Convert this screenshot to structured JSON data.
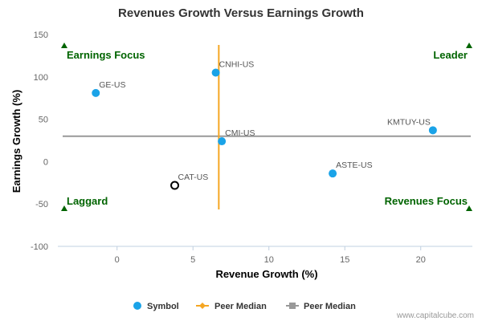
{
  "chart_data": {
    "type": "scatter",
    "title": "Revenues Growth Versus Earnings Growth",
    "xlabel": "Revenue Growth (%)",
    "ylabel": "Earnings Growth (%)",
    "xlim": [
      -3.9,
      23.4
    ],
    "ylim": [
      -100,
      150
    ],
    "xticks": [
      0,
      5,
      10,
      15,
      20
    ],
    "yticks": [
      150,
      100,
      50,
      0,
      -50,
      -100
    ],
    "grid": false,
    "legend_position": "bottom",
    "points": [
      {
        "label": "GE-US",
        "x": -1.4,
        "y": 81,
        "style": "filled"
      },
      {
        "label": "CNHI-US",
        "x": 6.5,
        "y": 105,
        "style": "filled"
      },
      {
        "label": "CMI-US",
        "x": 6.9,
        "y": 24,
        "style": "filled"
      },
      {
        "label": "ASTE-US",
        "x": 14.2,
        "y": -14,
        "style": "filled"
      },
      {
        "label": "KMTUY-US",
        "x": 20.8,
        "y": 37,
        "style": "filled"
      },
      {
        "label": "CAT-US",
        "x": 3.8,
        "y": -28,
        "style": "hollow"
      }
    ],
    "peer_median_x": 6.7,
    "peer_median_y": 30,
    "quadrants": {
      "top_left": "Earnings Focus",
      "top_right": "Leader",
      "bottom_left": "Laggard",
      "bottom_right": "Revenues Focus"
    },
    "legend": [
      {
        "label": "Symbol",
        "marker": "circle"
      },
      {
        "label": "Peer Median",
        "marker": "diamond-line"
      },
      {
        "label": "Peer Median",
        "marker": "square-line"
      }
    ],
    "colors": {
      "point": "#1aa3e8",
      "hollow_stroke": "#000000",
      "vertical_median": "#f5a623",
      "horizontal_median": "#999999",
      "quadrant_text": "#006400",
      "axis": "#c0d0e0"
    }
  },
  "credit": "www.capitalcube.com"
}
